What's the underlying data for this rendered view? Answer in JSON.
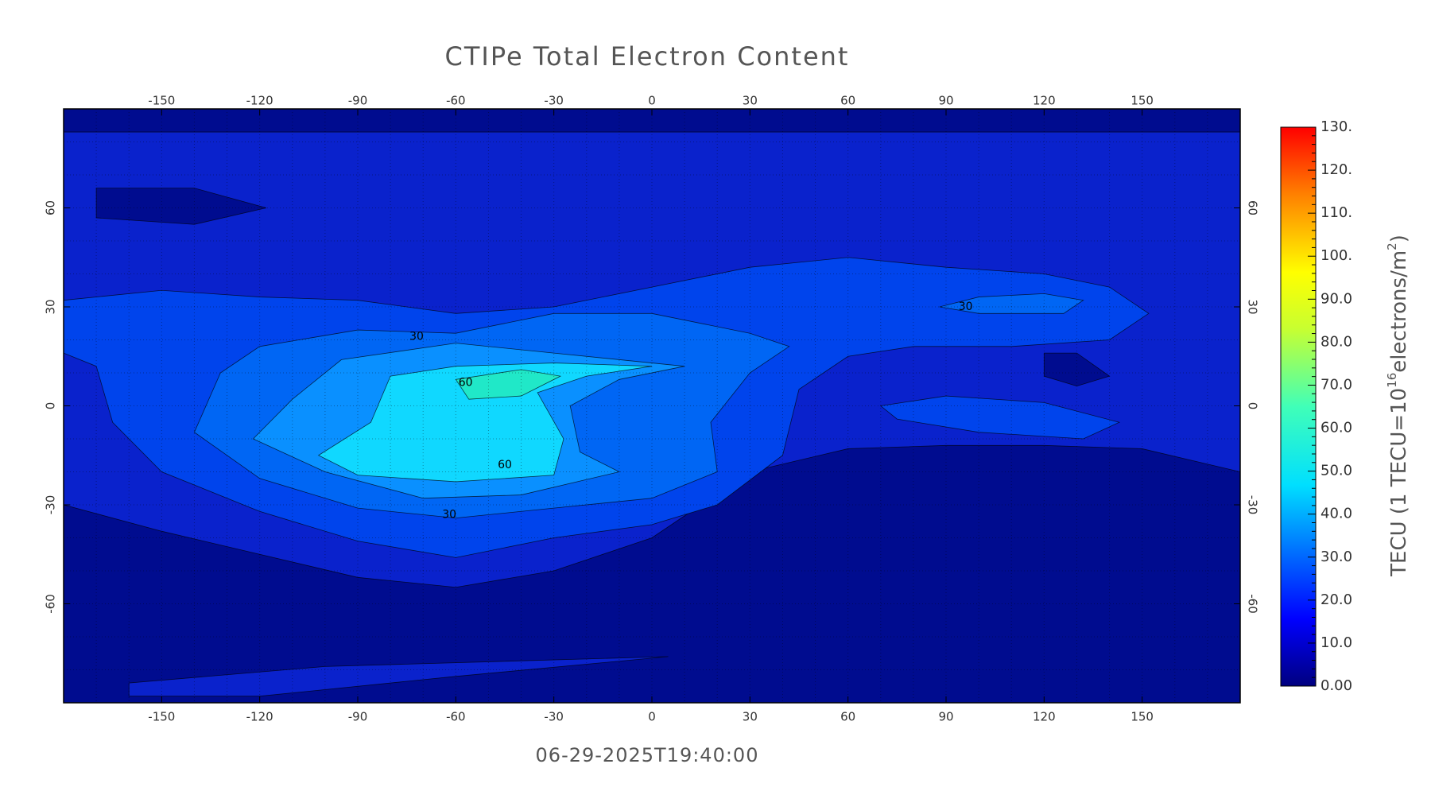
{
  "title": "CTIPe Total Electron Content",
  "timestamp": "06-29-2025T19:40:00",
  "map": {
    "xlim": [
      -180,
      180
    ],
    "ylim": [
      -90,
      90
    ],
    "xticks": [
      -150,
      -120,
      -90,
      -60,
      -30,
      0,
      30,
      60,
      90,
      120,
      150
    ],
    "yticks": [
      -60,
      -30,
      0,
      30,
      60
    ],
    "contour_labels": [
      30,
      60,
      60,
      30,
      30
    ]
  },
  "colorbar": {
    "lim": [
      0,
      130
    ],
    "label_parts": [
      "TECU (1 TECU=10",
      "16",
      "electrons/m",
      "2",
      ")"
    ],
    "ticks": [
      {
        "value": 0,
        "label": "0.00"
      },
      {
        "value": 10,
        "label": "10.0"
      },
      {
        "value": 20,
        "label": "20.0"
      },
      {
        "value": 30,
        "label": "30.0"
      },
      {
        "value": 40,
        "label": "40.0"
      },
      {
        "value": 50,
        "label": "50.0"
      },
      {
        "value": 60,
        "label": "60.0"
      },
      {
        "value": 70,
        "label": "70.0"
      },
      {
        "value": 80,
        "label": "80.0"
      },
      {
        "value": 90,
        "label": "90.0"
      },
      {
        "value": 100,
        "label": "100."
      },
      {
        "value": 110,
        "label": "110."
      },
      {
        "value": 120,
        "label": "120."
      },
      {
        "value": 130,
        "label": "130."
      }
    ]
  }
}
